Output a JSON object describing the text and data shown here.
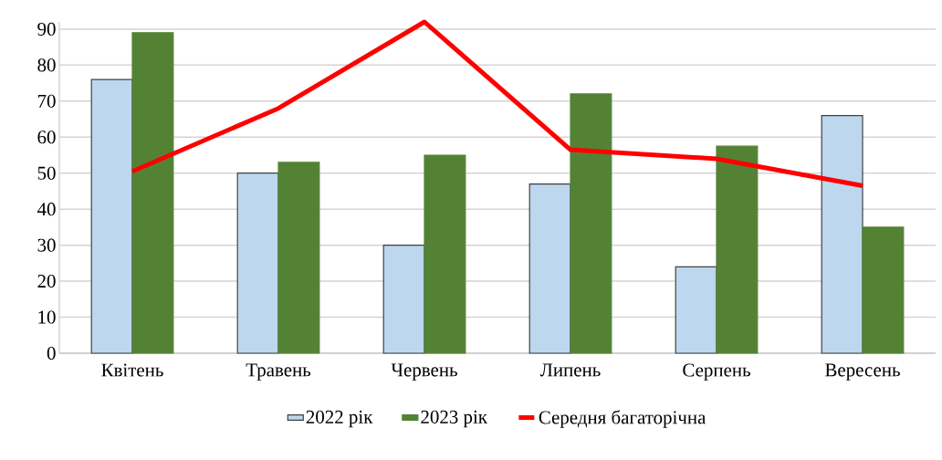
{
  "chart_data": {
    "type": "bar",
    "categories": [
      "Квітень",
      "Травень",
      "Червень",
      "Липень",
      "Серпень",
      "Вересень"
    ],
    "series": [
      {
        "name": "2022 рік",
        "color": "#bdd7ee",
        "values": [
          76,
          50,
          30,
          47,
          24,
          66
        ]
      },
      {
        "name": "2023 рік",
        "color": "#548235",
        "values": [
          89,
          53,
          55,
          72,
          57.5,
          35
        ]
      },
      {
        "name": "Середня багаторічна",
        "type": "line",
        "color": "#ff0000",
        "values": [
          50.5,
          68,
          92,
          56.5,
          54,
          46.5
        ]
      }
    ],
    "ylim": [
      0,
      92
    ],
    "yticks": [
      0,
      10,
      20,
      30,
      40,
      50,
      60,
      70,
      80,
      90
    ],
    "grid": "y",
    "legend": "bottom",
    "marker": "none",
    "line_style": "solid"
  }
}
